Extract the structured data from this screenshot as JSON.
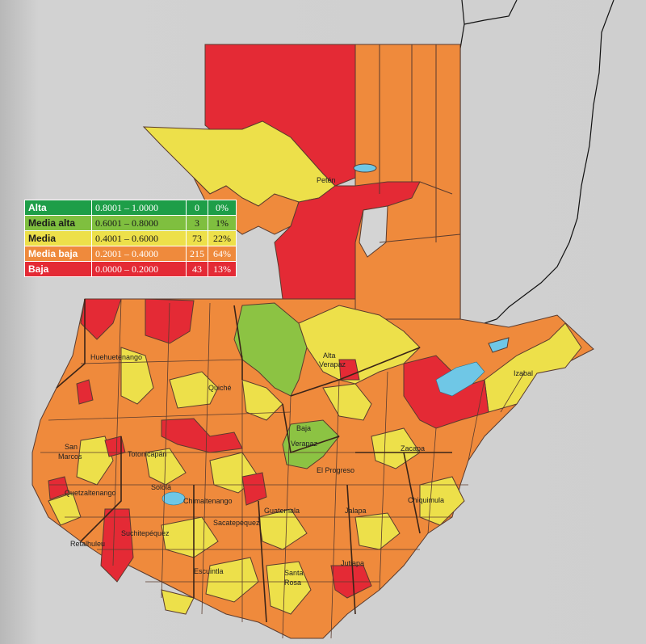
{
  "legend": [
    {
      "label": "Alta",
      "range": "0.8001 – 1.0000",
      "count": "0",
      "percent": "0%",
      "color": "#1e9e48",
      "text_color": "#ffffff"
    },
    {
      "label": "Media alta",
      "range": "0.6001 – 0.8000",
      "count": "3",
      "percent": "1%",
      "color": "#7fbf3f",
      "text_color": "#1a1a1a"
    },
    {
      "label": "Media",
      "range": "0.4001 – 0.6000",
      "count": "73",
      "percent": "22%",
      "color": "#ede04a",
      "text_color": "#1a1a1a"
    },
    {
      "label": "Media baja",
      "range": "0.2001 – 0.4000",
      "count": "215",
      "percent": "64%",
      "color": "#ef8a3c",
      "text_color": "#ffffff"
    },
    {
      "label": "Baja",
      "range": "0.0000 – 0.2000",
      "count": "43",
      "percent": "13%",
      "color": "#e42a35",
      "text_color": "#ffffff"
    }
  ],
  "department_labels": {
    "peten": "Petén",
    "huehuetenango": "Huehuetenango",
    "alta_verapaz_1": "Alta",
    "alta_verapaz_2": "Verapaz",
    "izabal": "Izabal",
    "quiche": "Quiché",
    "baja_verapaz_1": "Baja",
    "baja_verapaz_2": "Verapaz",
    "san_marcos_1": "San",
    "san_marcos_2": "Marcos",
    "totonicapan": "Totonicapán",
    "el_progreso": "El Progreso",
    "zacapa": "Zacapa",
    "solola": "Sololá",
    "quetzaltenango": "Quetzaltenango",
    "chimaltenango": "Chimaltenango",
    "guatemala": "Guatemala",
    "jalapa": "Jalapa",
    "chiquimula": "Chiquimula",
    "sacatepequez": "Sacatepéquez",
    "suchitepequez": "Suchitepéquez",
    "retalhuleu": "Retalhuleu",
    "escuintla": "Escuintla",
    "santa_rosa_1": "Santa",
    "santa_rosa_2": "Rosa",
    "jutiapa": "Jutiapa"
  },
  "colors": {
    "background": "#c9c9c9",
    "border": "#5a3b2e",
    "water": "#6fc7e6",
    "neighbor_line": "#111111"
  }
}
